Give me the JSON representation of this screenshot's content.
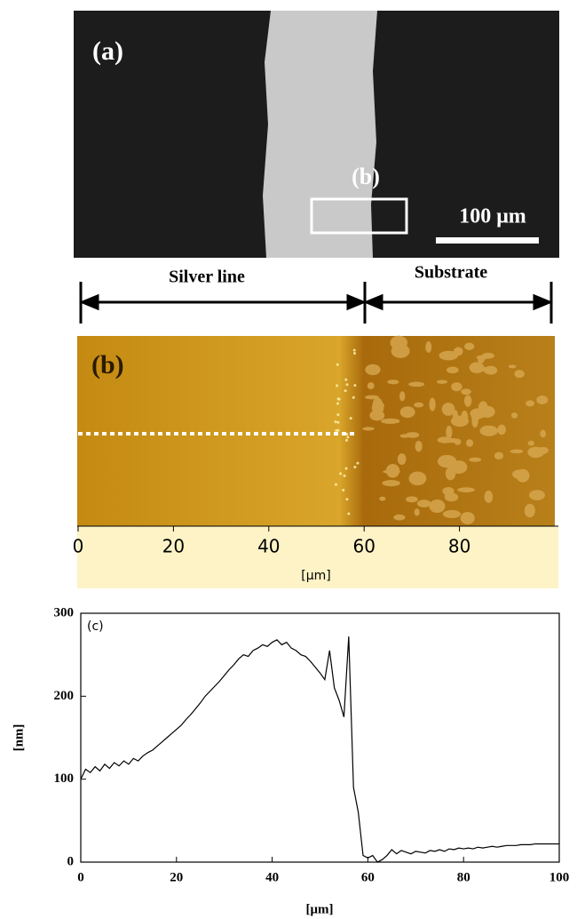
{
  "panel_a": {
    "label": "(a)",
    "inset_label": "(b)",
    "scale_bar": "100 μm"
  },
  "regions": {
    "left": "Silver line",
    "right": "Substrate"
  },
  "panel_b": {
    "label": "(b)",
    "xlim": [
      0,
      100
    ],
    "xticks": [
      0,
      20,
      40,
      60,
      80
    ],
    "xlabel": "[μm]"
  },
  "chart_data": {
    "type": "line",
    "title": "(c)",
    "xlabel": "[μm]",
    "ylabel": "[nm]",
    "xlim": [
      0,
      100
    ],
    "ylim": [
      0,
      300
    ],
    "xticks": [
      0,
      20,
      40,
      60,
      80,
      100
    ],
    "yticks": [
      0,
      100,
      200,
      300
    ],
    "series": [
      {
        "color": "#000000",
        "x": [
          0,
          1,
          2,
          3,
          4,
          5,
          6,
          7,
          8,
          9,
          10,
          11,
          12,
          13,
          14,
          15,
          16,
          17,
          18,
          19,
          20,
          21,
          22,
          23,
          24,
          25,
          26,
          27,
          28,
          29,
          30,
          31,
          32,
          33,
          34,
          35,
          36,
          37,
          38,
          39,
          40,
          41,
          42,
          43,
          44,
          45,
          46,
          47,
          48,
          49,
          50,
          51,
          52,
          53,
          54,
          55,
          56,
          57,
          58,
          59,
          60,
          61,
          62,
          63,
          64,
          65,
          66,
          67,
          68,
          69,
          70,
          71,
          72,
          73,
          74,
          75,
          76,
          77,
          78,
          79,
          80,
          81,
          82,
          83,
          84,
          85,
          86,
          87,
          88,
          89,
          90,
          91,
          92,
          93,
          94,
          95,
          96,
          97,
          98,
          99,
          100
        ],
        "values": [
          100,
          112,
          108,
          115,
          110,
          118,
          113,
          120,
          116,
          122,
          118,
          125,
          122,
          128,
          132,
          135,
          140,
          145,
          150,
          155,
          160,
          165,
          172,
          178,
          185,
          192,
          200,
          206,
          212,
          218,
          225,
          232,
          238,
          245,
          250,
          248,
          255,
          258,
          262,
          260,
          265,
          268,
          262,
          265,
          258,
          255,
          250,
          248,
          242,
          235,
          228,
          220,
          255,
          210,
          195,
          175,
          272,
          90,
          60,
          8,
          5,
          8,
          0,
          3,
          8,
          15,
          10,
          14,
          12,
          10,
          13,
          12,
          11,
          14,
          13,
          15,
          13,
          16,
          15,
          17,
          16,
          17,
          16,
          18,
          17,
          18,
          19,
          18,
          19,
          20,
          20,
          20,
          21,
          21,
          21,
          22,
          22,
          22,
          22,
          22,
          22
        ]
      }
    ]
  }
}
